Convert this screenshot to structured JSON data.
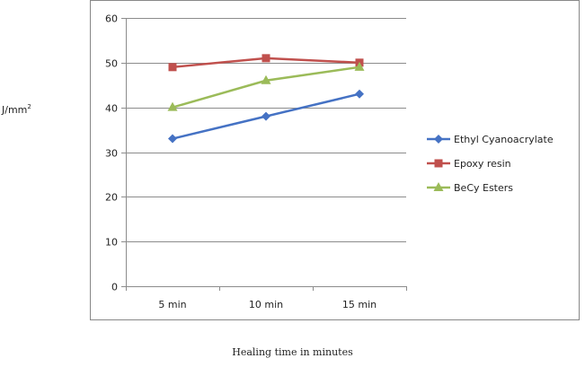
{
  "chart_data": {
    "type": "line",
    "categories": [
      "5 min",
      "10 min",
      "15 min"
    ],
    "series": [
      {
        "name": "Ethyl Cyanoacrylate",
        "values": [
          33,
          38,
          43
        ],
        "color": "#4572c4",
        "marker": "diamond"
      },
      {
        "name": "Epoxy resin",
        "values": [
          49,
          51,
          50
        ],
        "color": "#c0504d",
        "marker": "square"
      },
      {
        "name": "BeCy Esters",
        "values": [
          40,
          46,
          49
        ],
        "color": "#9bbb59",
        "marker": "triangle"
      }
    ],
    "ylabel_base": "J/mm",
    "ylabel_sup": "2",
    "xlabel": "Healing time in minutes",
    "ylim": [
      0,
      60
    ],
    "yticks": [
      0,
      10,
      20,
      30,
      40,
      50,
      60
    ],
    "grid": true,
    "legend_position": "right"
  }
}
